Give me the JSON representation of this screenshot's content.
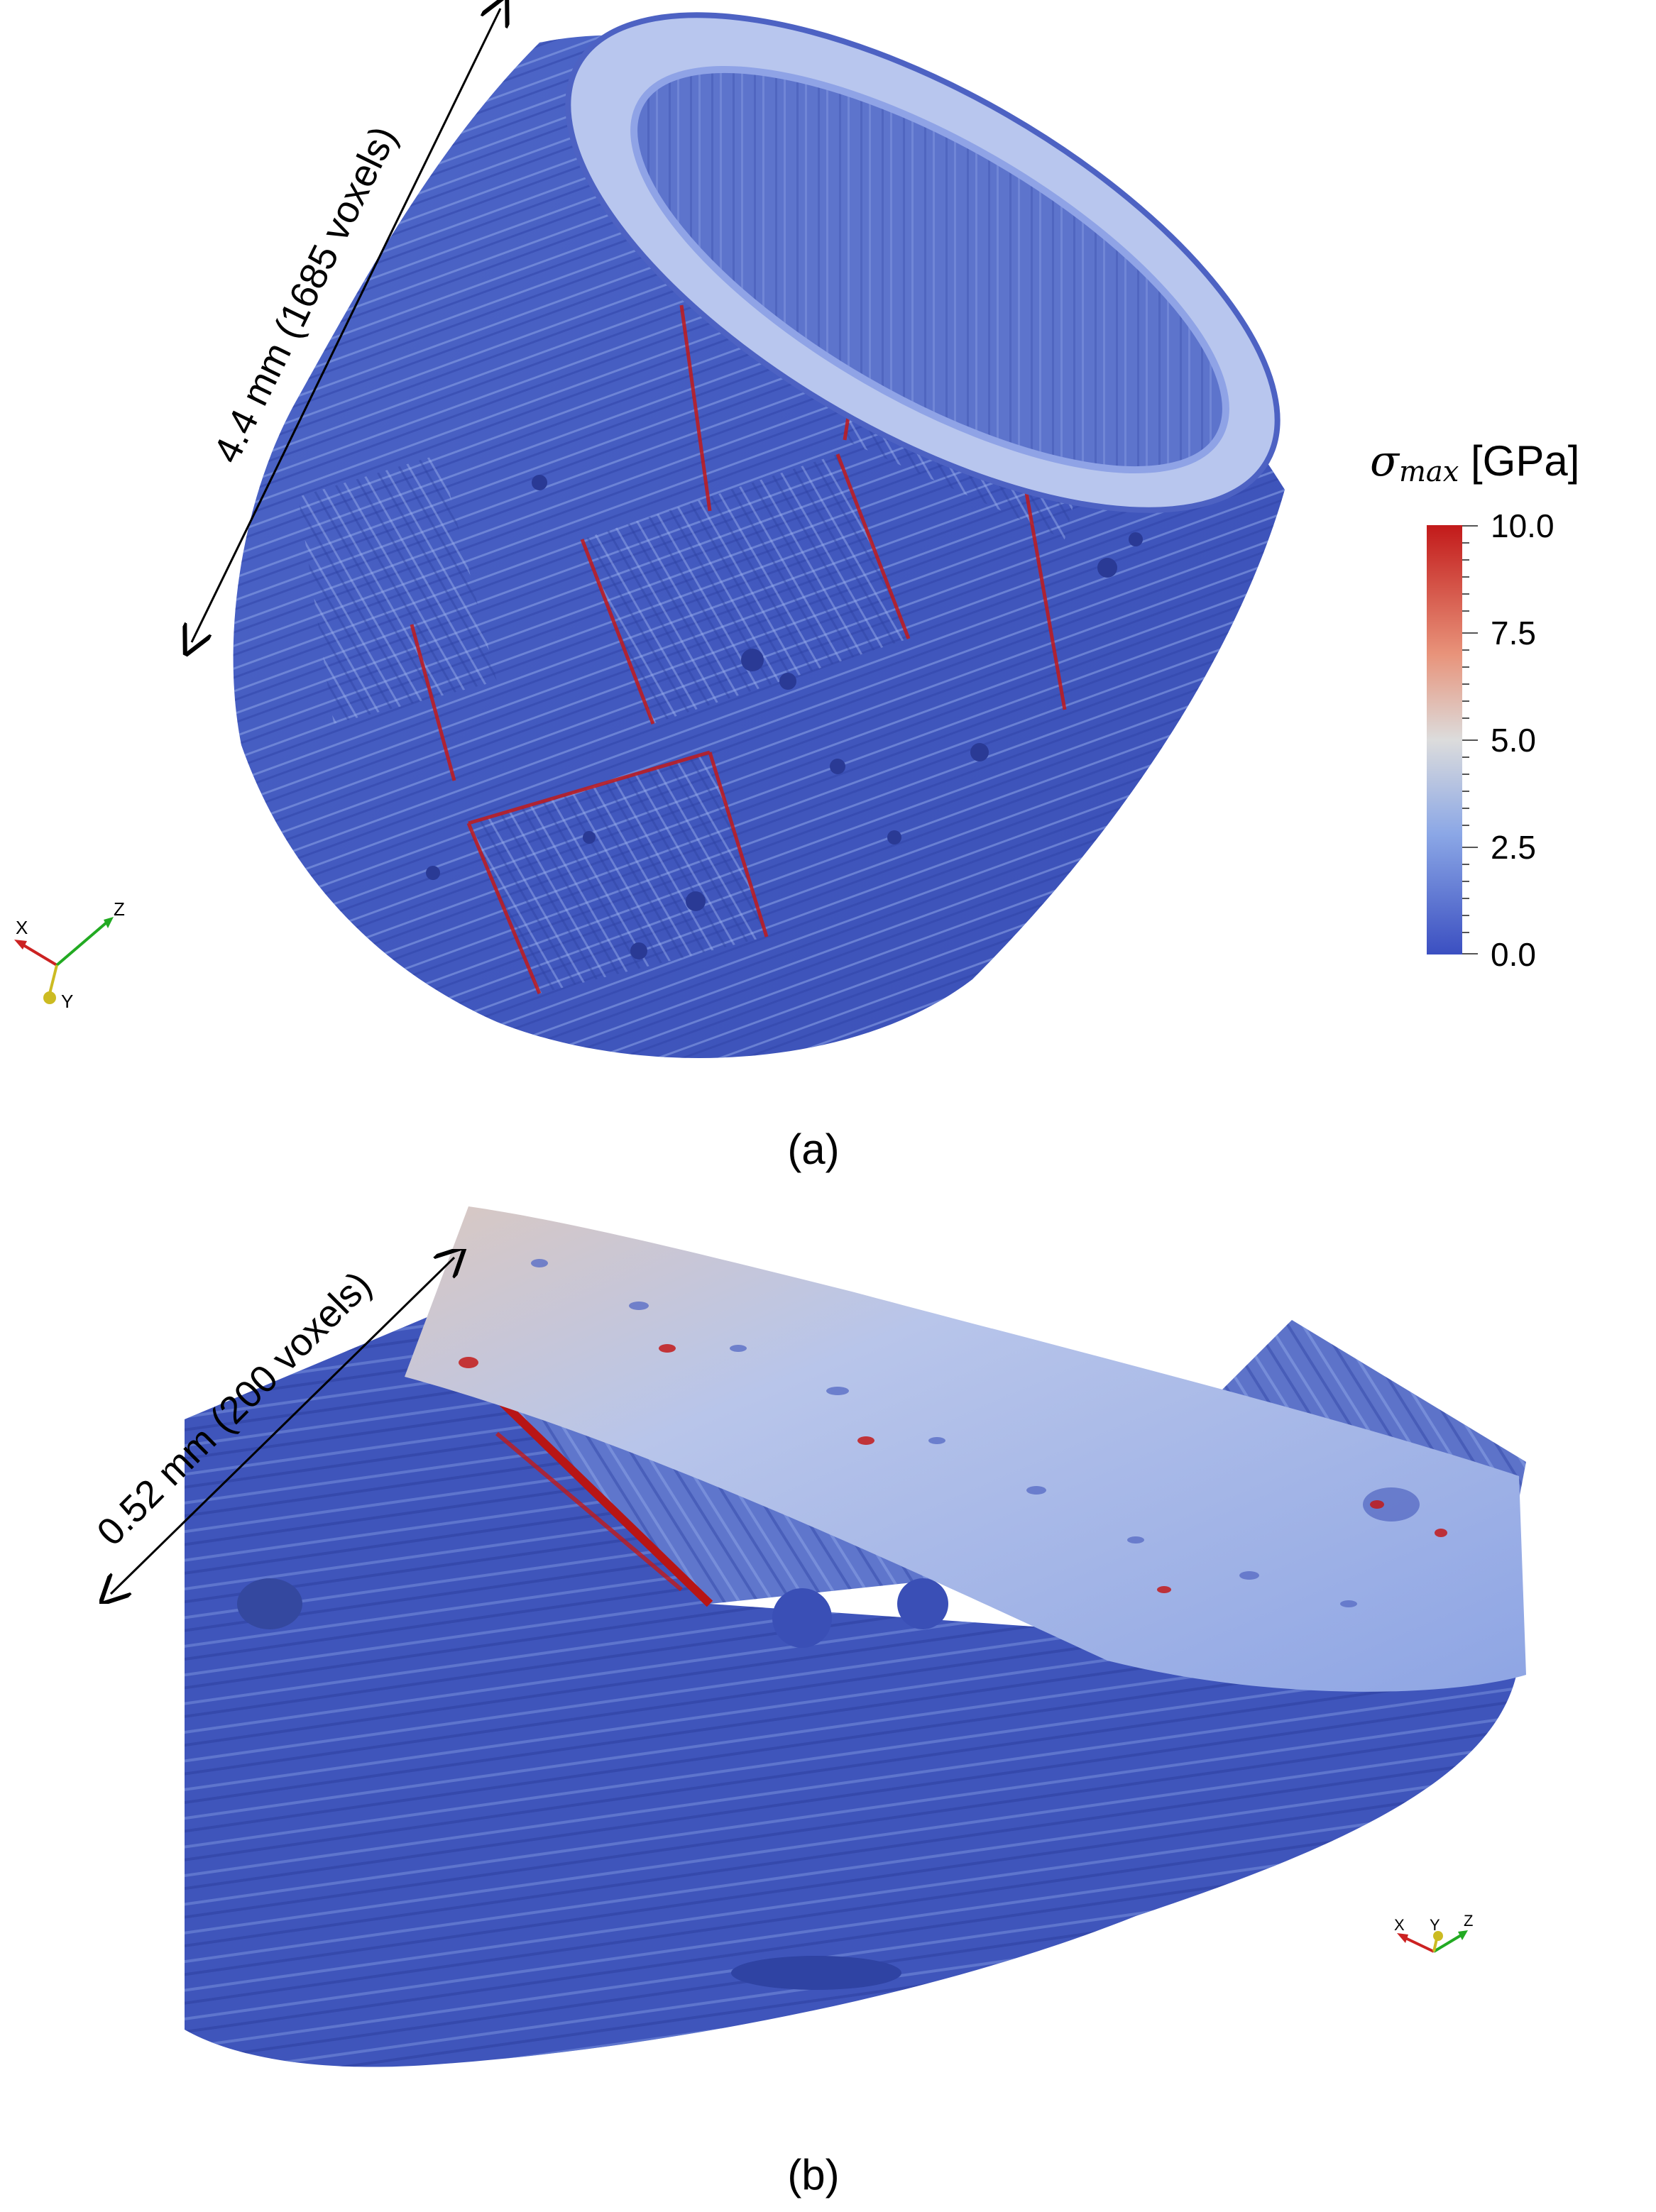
{
  "panel_a": {
    "label": "(a)",
    "dimension": "4.4 mm (1685 voxels)"
  },
  "panel_b": {
    "label": "(b)",
    "dimension": "0.52 mm (200 voxels)"
  },
  "colorbar": {
    "symbol": "σ",
    "subscript": "max",
    "unit": "[GPa]",
    "ticks": [
      "10.0",
      "7.5",
      "5.0",
      "2.5",
      "0.0"
    ],
    "colors": [
      "#c21a1a",
      "#e8937a",
      "#dcdcdc",
      "#8ba7e6",
      "#3b4fc1"
    ]
  },
  "axes_triad": {
    "x": "X",
    "y": "Y",
    "z": "Z"
  }
}
